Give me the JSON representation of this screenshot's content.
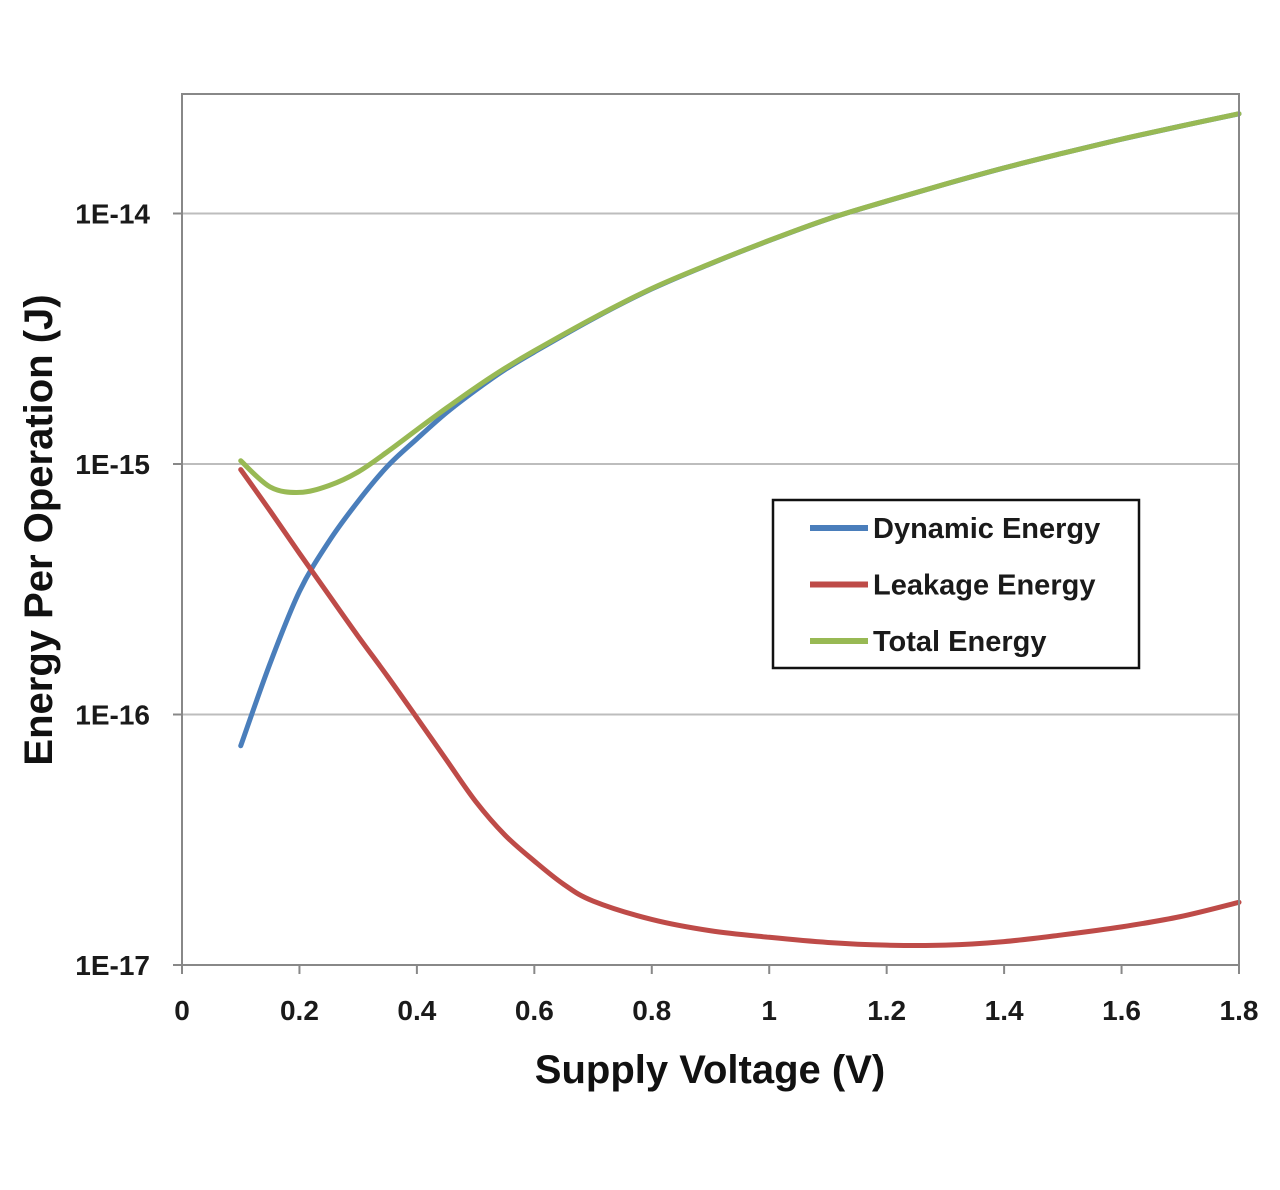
{
  "chart_data": {
    "type": "line",
    "title": "",
    "xlabel": "Supply Voltage (V)",
    "ylabel": "Energy Per Operation (J)",
    "xlim": [
      0,
      1.8
    ],
    "ylim": [
      1e-17,
      3e-14
    ],
    "y_scale": "log",
    "x_ticks": [
      0,
      0.2,
      0.4,
      0.6,
      0.8,
      1,
      1.2,
      1.4,
      1.6,
      1.8
    ],
    "x_tick_labels": [
      "0",
      "0.2",
      "0.4",
      "0.6",
      "0.8",
      "1",
      "1.2",
      "1.4",
      "1.6",
      "1.8"
    ],
    "y_ticks": [
      1e-17,
      1e-16,
      1e-15,
      1e-14
    ],
    "y_tick_labels": [
      "1E-17",
      "1E-16",
      "1E-15",
      "1E-14"
    ],
    "grid": {
      "horizontal": true,
      "vertical": false
    },
    "legend_position": "center-right",
    "series": [
      {
        "name": "Dynamic Energy",
        "color": "#4a7ebb",
        "x": [
          0.1,
          0.15,
          0.2,
          0.25,
          0.3,
          0.35,
          0.4,
          0.45,
          0.5,
          0.55,
          0.6,
          0.7,
          0.8,
          0.9,
          1.0,
          1.1,
          1.2,
          1.3,
          1.4,
          1.5,
          1.6,
          1.7,
          1.8
        ],
        "values": [
          7.5e-17,
          1.6e-16,
          3.1e-16,
          4.9e-16,
          7.1e-16,
          9.8e-16,
          1.26e-15,
          1.6e-15,
          1.97e-15,
          2.38e-15,
          2.8e-15,
          3.8e-15,
          5e-15,
          6.3e-15,
          7.8e-15,
          9.5e-15,
          1.12e-14,
          1.31e-14,
          1.52e-14,
          1.74e-14,
          1.98e-14,
          2.23e-14,
          2.5e-14
        ]
      },
      {
        "name": "Leakage Energy",
        "color": "#be4b48",
        "x": [
          0.1,
          0.15,
          0.2,
          0.25,
          0.3,
          0.35,
          0.4,
          0.45,
          0.5,
          0.55,
          0.6,
          0.65,
          0.7,
          0.8,
          0.9,
          1.0,
          1.1,
          1.2,
          1.3,
          1.4,
          1.5,
          1.6,
          1.7,
          1.8
        ],
        "values": [
          9.5e-16,
          6.5e-16,
          4.4e-16,
          3e-16,
          2.05e-16,
          1.42e-16,
          9.7e-17,
          6.6e-17,
          4.5e-17,
          3.3e-17,
          2.6e-17,
          2.1e-17,
          1.8e-17,
          1.52e-17,
          1.37e-17,
          1.29e-17,
          1.23e-17,
          1.2e-17,
          1.2e-17,
          1.24e-17,
          1.32e-17,
          1.42e-17,
          1.56e-17,
          1.78e-17
        ]
      },
      {
        "name": "Total Energy",
        "color": "#98b954",
        "x": [
          0.1,
          0.15,
          0.2,
          0.25,
          0.3,
          0.35,
          0.4,
          0.45,
          0.5,
          0.55,
          0.6,
          0.7,
          0.8,
          0.9,
          1.0,
          1.1,
          1.2,
          1.3,
          1.4,
          1.5,
          1.6,
          1.7,
          1.8
        ],
        "values": [
          1.03e-15,
          8.1e-16,
          7.7e-16,
          8.2e-16,
          9.3e-16,
          1.12e-15,
          1.37e-15,
          1.67e-15,
          2.02e-15,
          2.41e-15,
          2.83e-15,
          3.82e-15,
          5.02e-15,
          6.31e-15,
          7.81e-15,
          9.51e-15,
          1.121e-14,
          1.311e-14,
          1.521e-14,
          1.741e-14,
          1.981e-14,
          2.231e-14,
          2.502e-14
        ]
      }
    ]
  }
}
